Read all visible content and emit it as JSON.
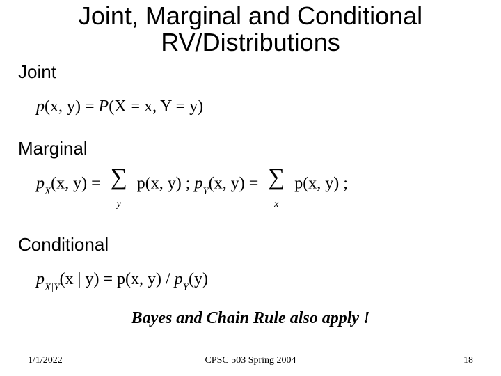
{
  "title_line1": "Joint, Marginal and Conditional",
  "title_line2": "RV/Distributions",
  "sections": {
    "joint": "Joint",
    "marginal": "Marginal",
    "conditional": "Conditional"
  },
  "formulas": {
    "joint": {
      "lhs_p": "p",
      "lhs_args": "(x, y)",
      "eq": " = ",
      "rhs_P": "P",
      "rhs_args": "(X = x, Y = y)"
    },
    "marginal": {
      "pX_sub": "X",
      "args": "(x, y)",
      "eq": " = ",
      "sum_over_y": "y",
      "sum_over_x": "x",
      "inner": "p(x, y)",
      "sep": " ; ",
      "pY_sub": "Y"
    },
    "conditional": {
      "pXY_sub": "X|Y",
      "lhs_args": "(x | y)",
      "eq": " = ",
      "rhs1": "p(x, y)",
      "slash": " / ",
      "pY_sub": "Y",
      "rhs2_args": "(y)"
    }
  },
  "bayes_note": "Bayes and Chain Rule also apply !",
  "footer": {
    "date": "1/1/2022",
    "course": "CPSC 503 Spring 2004",
    "page": "18"
  },
  "colors": {
    "text": "#000000",
    "background": "#ffffff"
  },
  "typography": {
    "title_fontsize": 36,
    "section_fontsize": 26,
    "formula_fontsize": 24,
    "bayes_fontsize": 24,
    "footer_fontsize": 14
  }
}
